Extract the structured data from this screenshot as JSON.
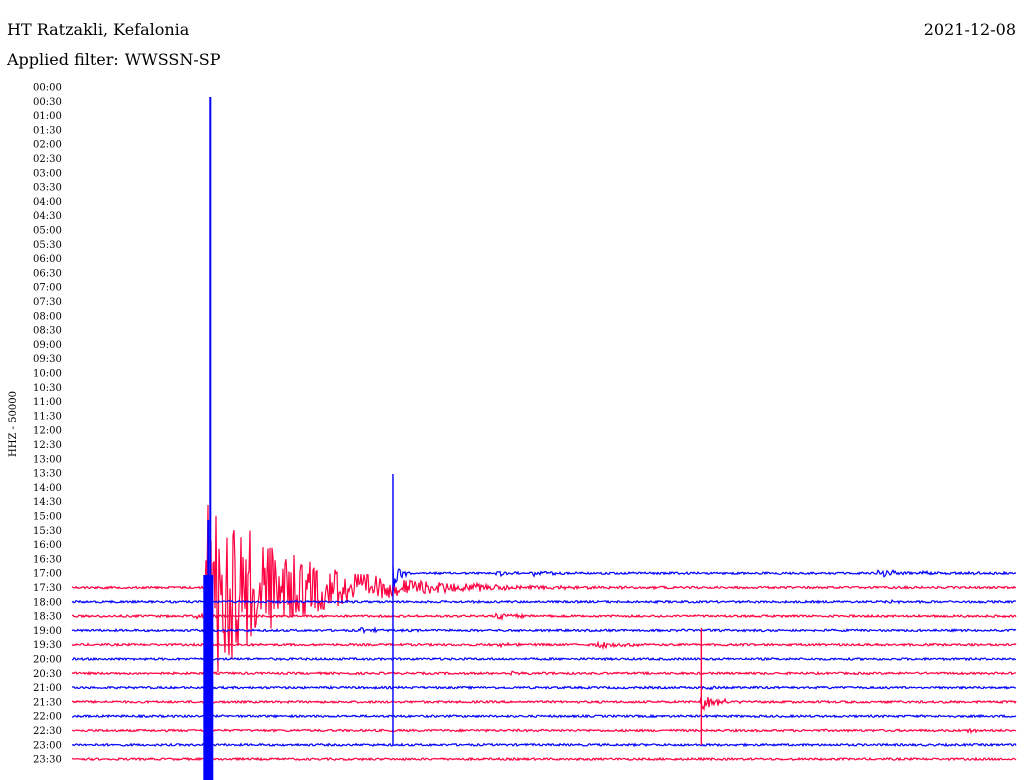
{
  "header": {
    "station": "HT Ratzakli, Kefalonia",
    "date": "2021-12-08",
    "filter_label": "Applied filter:",
    "filter_value": "WWSSN-SP"
  },
  "colors": {
    "trace_a": "#ff0040",
    "trace_b": "#0000ff",
    "text": "#000000",
    "background": "#ffffff"
  },
  "chart_data": {
    "type": "line",
    "title": "HT Ratzakli, Kefalonia",
    "ylabel": "HHZ - 50000",
    "xlabel": "",
    "grid": false,
    "legend": "none",
    "row_labels": [
      "00:00",
      "00:30",
      "01:00",
      "01:30",
      "02:00",
      "02:30",
      "03:00",
      "03:30",
      "04:00",
      "04:30",
      "05:00",
      "05:30",
      "06:00",
      "06:30",
      "07:00",
      "07:30",
      "08:00",
      "08:30",
      "09:00",
      "09:30",
      "10:00",
      "10:30",
      "11:00",
      "11:30",
      "12:00",
      "12:30",
      "13:00",
      "13:30",
      "14:00",
      "14:30",
      "15:00",
      "15:30",
      "16:00",
      "16:30",
      "17:00",
      "17:30",
      "18:00",
      "18:30",
      "19:00",
      "19:30",
      "20:00",
      "20:30",
      "21:00",
      "21:30",
      "22:00",
      "22:30",
      "23:00",
      "23:30"
    ],
    "row_minutes": 30,
    "traces_start_row": "17:00",
    "trace_colors_alternating": [
      "#0000ff",
      "#ff0040"
    ],
    "events": [
      {
        "row": "17:30",
        "minute": 4.3,
        "amplitude": 17.0,
        "decay_min": 2.5
      },
      {
        "row": "17:00",
        "minute": 10.2,
        "amplitude": 3.4,
        "decay_min": 0.2
      },
      {
        "row": "17:00",
        "minute": 13.5,
        "amplitude": 0.4,
        "decay_min": 0.8
      },
      {
        "row": "17:00",
        "minute": 14.7,
        "amplitude": 0.4,
        "decay_min": 0.5
      },
      {
        "row": "17:00",
        "minute": 25.6,
        "amplitude": 0.6,
        "decay_min": 1.2
      },
      {
        "row": "18:30",
        "minute": 3.9,
        "amplitude": 0.5,
        "decay_min": 0.5
      },
      {
        "row": "18:30",
        "minute": 13.5,
        "amplitude": 0.4,
        "decay_min": 0.6
      },
      {
        "row": "19:00",
        "minute": 9.2,
        "amplitude": 0.4,
        "decay_min": 0.5
      },
      {
        "row": "19:30",
        "minute": 16.7,
        "amplitude": 0.6,
        "decay_min": 0.8
      },
      {
        "row": "19:30",
        "minute": 13.5,
        "amplitude": 0.3,
        "decay_min": 0.6
      },
      {
        "row": "20:30",
        "minute": 14.0,
        "amplitude": 0.3,
        "decay_min": 0.8
      },
      {
        "row": "21:30",
        "minute": 20.0,
        "amplitude": 1.5,
        "decay_min": 0.5
      },
      {
        "row": "21:00",
        "minute": 20.2,
        "amplitude": 0.4,
        "decay_min": 0.5
      },
      {
        "row": "18:00",
        "minute": 26.0,
        "amplitude": 0.3,
        "decay_min": 0.4
      },
      {
        "row": "22:30",
        "minute": 28.5,
        "amplitude": 0.3,
        "decay_min": 0.3
      }
    ]
  }
}
